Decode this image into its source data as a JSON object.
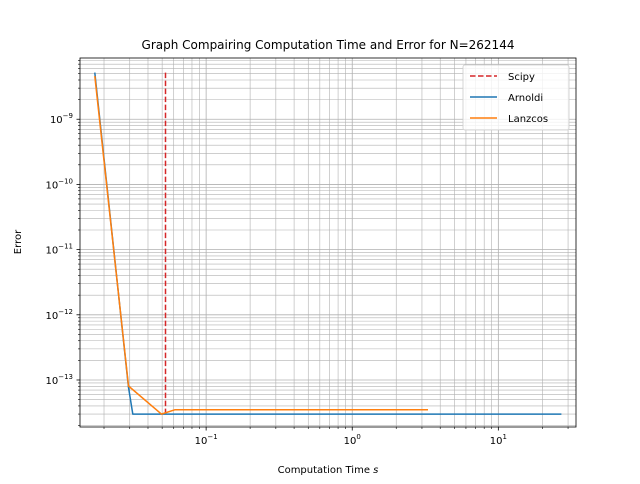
{
  "chart_data": {
    "type": "line",
    "title": "Graph Compairing Computation Time and Error for N=262144",
    "xlabel": "Computation Time",
    "xlabel_var": "s",
    "ylabel": "Error",
    "xscale": "log",
    "yscale": "log",
    "xlim": [
      0.0137,
      34.0
    ],
    "ylim": [
      1.9e-14,
      8.7e-09
    ],
    "grid": "both-major-minor",
    "legend_position": "top-right",
    "x_ticks": [
      {
        "value": 0.1,
        "base": "10",
        "exp": "−1"
      },
      {
        "value": 1,
        "base": "10",
        "exp": "0"
      },
      {
        "value": 10,
        "base": "10",
        "exp": "1"
      }
    ],
    "y_ticks": [
      {
        "value": 1e-13,
        "base": "10",
        "exp": "−13"
      },
      {
        "value": 1e-12,
        "base": "10",
        "exp": "−12"
      },
      {
        "value": 1e-11,
        "base": "10",
        "exp": "−11"
      },
      {
        "value": 1e-10,
        "base": "10",
        "exp": "−10"
      },
      {
        "value": 1e-09,
        "base": "10",
        "exp": "−9"
      }
    ],
    "series": [
      {
        "name": "Scipy",
        "color": "#d62728",
        "style": "dashed",
        "x": [
          0.0527,
          0.0527
        ],
        "y": [
          3e-14,
          5.2e-09
        ]
      },
      {
        "name": "Arnoldi",
        "color": "#1f77b4",
        "style": "solid",
        "x": [
          0.0173,
          0.0294,
          0.0315,
          0.05,
          0.1,
          1,
          5,
          27.0
        ],
        "y": [
          5.2e-09,
          7.7e-14,
          3e-14,
          3e-14,
          3e-14,
          3e-14,
          3e-14,
          3e-14
        ]
      },
      {
        "name": "Lanzcos",
        "color": "#ff7f0e",
        "style": "solid",
        "x": [
          0.0173,
          0.0294,
          0.0494,
          0.0613,
          0.1,
          1,
          3.3
        ],
        "y": [
          4.6e-09,
          8.1e-14,
          3e-14,
          3.5e-14,
          3.5e-14,
          3.5e-14,
          3.5e-14
        ]
      }
    ]
  }
}
